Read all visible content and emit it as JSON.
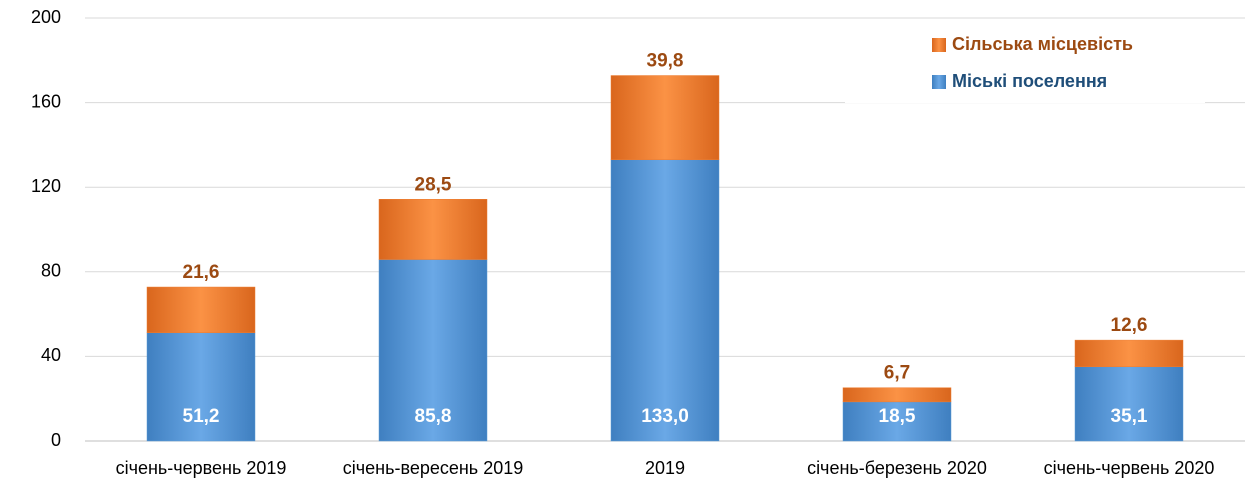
{
  "chart_data": {
    "type": "stacked_bar",
    "categories": [
      "січень-червень 2019",
      "січень-вересень 2019",
      "2019",
      "січень-березень 2020",
      "січень-червень  2020"
    ],
    "series": [
      {
        "name": "Міські поселення",
        "color": "#5b9bd5",
        "values": [
          51.2,
          85.8,
          133.0,
          18.5,
          35.1
        ],
        "value_labels": [
          "51,2",
          "85,8",
          "133,0",
          "18,5",
          "35,1"
        ]
      },
      {
        "name": "Сільська місцевість",
        "color": "#ed7d31",
        "values": [
          21.6,
          28.5,
          39.8,
          6.7,
          12.6
        ],
        "value_labels": [
          "21,6",
          "28,5",
          "39,8",
          "6,7",
          "12,6"
        ]
      }
    ],
    "ylim": [
      0,
      200
    ],
    "yticks": [
      0,
      40,
      80,
      120,
      160,
      200
    ],
    "grid": true,
    "legend": "top-right"
  }
}
